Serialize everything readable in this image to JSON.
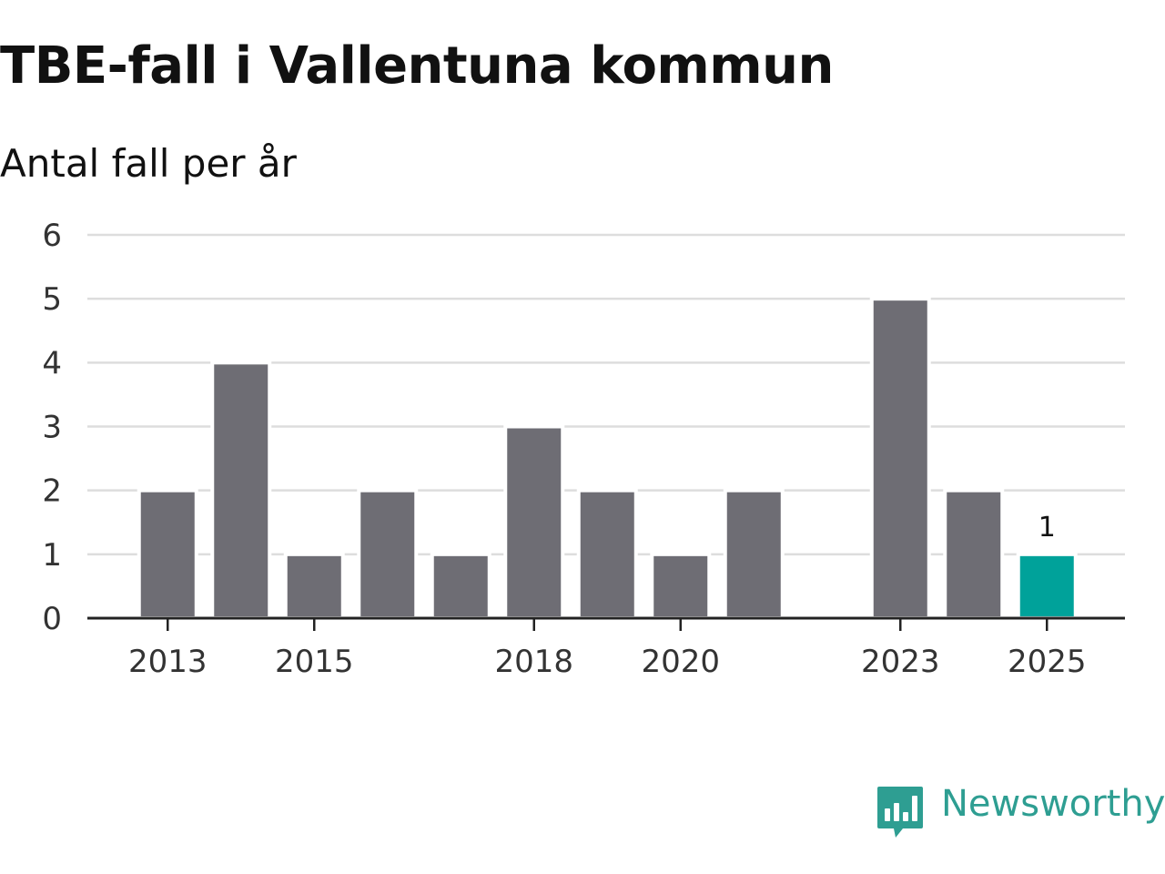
{
  "title": "TBE-fall i Vallentuna kommun",
  "subtitle": "Antal fall per år",
  "brand": {
    "name": "Newsworthy",
    "logo_icon": "bar-chart-speech-bubble-icon"
  },
  "colors": {
    "bar": "#6e6d74",
    "highlight": "#00a29a",
    "grid": "#dddddd",
    "axis": "#222222",
    "brand": "#2e9e92"
  },
  "chart_data": {
    "type": "bar",
    "title": "TBE-fall i Vallentuna kommun",
    "subtitle": "Antal fall per år",
    "xlabel": "",
    "ylabel": "",
    "categories": [
      2013,
      2014,
      2015,
      2016,
      2017,
      2018,
      2019,
      2020,
      2021,
      2022,
      2023,
      2024,
      2025
    ],
    "values": [
      2,
      4,
      1,
      2,
      1,
      3,
      2,
      1,
      2,
      0,
      5,
      2,
      1
    ],
    "highlight_index": 12,
    "annotations": [
      {
        "category": 2025,
        "text": "1"
      }
    ],
    "ylim": [
      0,
      6
    ],
    "yticks": [
      0,
      1,
      2,
      3,
      4,
      5,
      6
    ],
    "xticks": [
      2013,
      2015,
      2018,
      2020,
      2023,
      2025
    ],
    "grid": true,
    "legend": "none"
  }
}
